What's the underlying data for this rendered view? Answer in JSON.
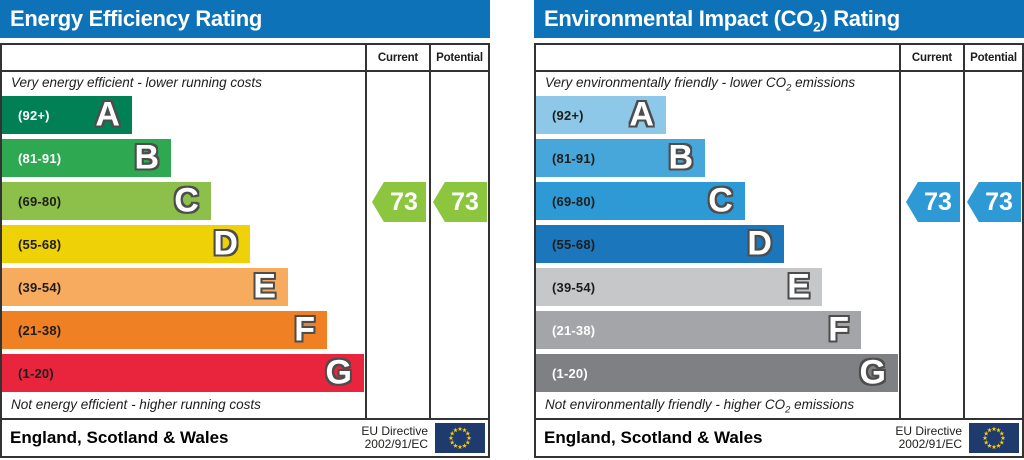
{
  "colors": {
    "header_bg": "#0e72b8",
    "border": "#333333",
    "flag_bg": "#1f3a6d",
    "flag_star": "#ffcc00",
    "band_letter_outline": "#4d4d4d",
    "dark_text": "#1d1d1b"
  },
  "chart_data": [
    {
      "type": "bar",
      "id": "energy-efficiency",
      "title": "Energy Efficiency Rating",
      "title_html": "Energy Efficiency Rating",
      "current_label": "Current",
      "potential_label": "Potential",
      "top_note": "Very energy efficient - lower running costs",
      "top_note_html": "Very energy efficient - lower running costs",
      "bottom_note": "Not energy efficient - higher running costs",
      "bottom_note_html": "Not energy efficient - higher running costs",
      "categories": [
        "A",
        "B",
        "C",
        "D",
        "E",
        "F",
        "G"
      ],
      "ranges": [
        "(92+)",
        "(81-91)",
        "(69-80)",
        "(55-68)",
        "(39-54)",
        "(21-38)",
        "(1-20)"
      ],
      "band_colors": [
        "#008054",
        "#2ea952",
        "#8dc04a",
        "#eed207",
        "#f7ab5f",
        "#ef8023",
        "#e9243d"
      ],
      "band_text_colors": [
        "#ffffff",
        "#ffffff",
        "#1d1d1b",
        "#1d1d1b",
        "#1d1d1b",
        "#1d1d1b",
        "#1d1d1b"
      ],
      "band_widths_pct": [
        35.9,
        46.7,
        57.7,
        68.5,
        79,
        89.8,
        100
      ],
      "scale": {
        "min": 1,
        "max": 100
      },
      "values": {
        "current": 73,
        "potential": 73,
        "current_band": "C",
        "potential_band": "C"
      },
      "arrow_color": "#8cc63f",
      "footer": {
        "region": "England, Scotland & Wales",
        "directive_line1": "EU Directive",
        "directive_line2": "2002/91/EC"
      }
    },
    {
      "type": "bar",
      "id": "environmental-impact-co2",
      "title": "Environmental Impact (CO2) Rating",
      "title_html": "Environmental Impact (CO<sub>2</sub>) Rating",
      "current_label": "Current",
      "potential_label": "Potential",
      "top_note": "Very environmentally friendly - lower CO2 emissions",
      "top_note_html": "Very environmentally friendly - lower CO<sub>2</sub> emissions",
      "bottom_note": "Not environmentally friendly - higher CO2 emissions",
      "bottom_note_html": "Not environmentally friendly - higher CO<sub>2</sub> emissions",
      "categories": [
        "A",
        "B",
        "C",
        "D",
        "E",
        "F",
        "G"
      ],
      "ranges": [
        "(92+)",
        "(81-91)",
        "(69-80)",
        "(55-68)",
        "(39-54)",
        "(21-38)",
        "(1-20)"
      ],
      "band_colors": [
        "#8dc8e8",
        "#47a7db",
        "#2e9ad5",
        "#1b76bb",
        "#c6c7c9",
        "#a3a5a8",
        "#7e8083"
      ],
      "band_text_colors": [
        "#1d1d1b",
        "#1d1d1b",
        "#1d1d1b",
        "#1d1d1b",
        "#1d1d1b",
        "#ffffff",
        "#ffffff"
      ],
      "band_widths_pct": [
        35.9,
        46.7,
        57.7,
        68.5,
        79,
        89.8,
        100
      ],
      "scale": {
        "min": 1,
        "max": 100
      },
      "values": {
        "current": 73,
        "potential": 73,
        "current_band": "C",
        "potential_band": "C"
      },
      "arrow_color": "#2e9ad5",
      "footer": {
        "region": "England, Scotland & Wales",
        "directive_line1": "EU Directive",
        "directive_line2": "2002/91/EC"
      }
    }
  ]
}
